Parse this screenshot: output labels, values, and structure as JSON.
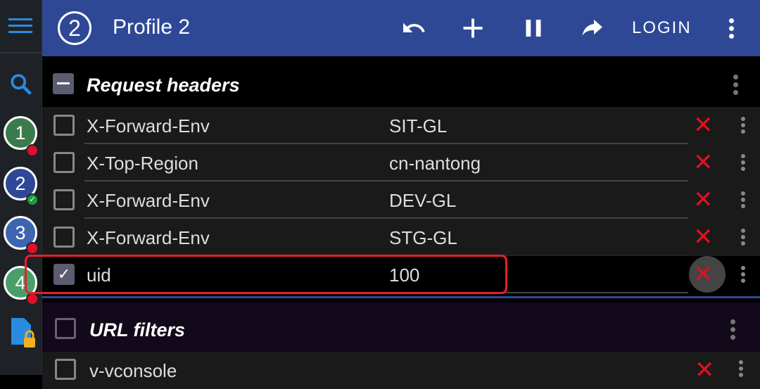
{
  "header": {
    "profile_number": "2",
    "title": "Profile 2",
    "login_label": "LOGIN"
  },
  "sidebar": {
    "profiles": [
      {
        "label": "1",
        "color": "#3b7a4c",
        "badge": "red-dot"
      },
      {
        "label": "2",
        "color": "#2f4896",
        "badge": "green-check"
      },
      {
        "label": "3",
        "color": "#3d65b0",
        "badge": "red-dot"
      },
      {
        "label": "4",
        "color": "#4a9e6a",
        "badge": "red-dot"
      }
    ]
  },
  "request_headers": {
    "title": "Request headers",
    "state": "partial",
    "rows": [
      {
        "name": "X-Forward-Env",
        "value": "SIT-GL",
        "checked": false
      },
      {
        "name": "X-Top-Region",
        "value": "cn-nantong",
        "checked": false
      },
      {
        "name": "X-Forward-Env",
        "value": "DEV-GL",
        "checked": false
      },
      {
        "name": "X-Forward-Env",
        "value": "STG-GL",
        "checked": false
      },
      {
        "name": "uid",
        "value": "100",
        "checked": true
      }
    ]
  },
  "url_filters": {
    "title": "URL filters",
    "checked": false,
    "rows": [
      {
        "name": "v-vconsole",
        "checked": false
      }
    ]
  },
  "colors": {
    "header": "#2f4896",
    "accent": "#2a8be0",
    "delete": "#e01020",
    "annotation": "#e8202a"
  }
}
